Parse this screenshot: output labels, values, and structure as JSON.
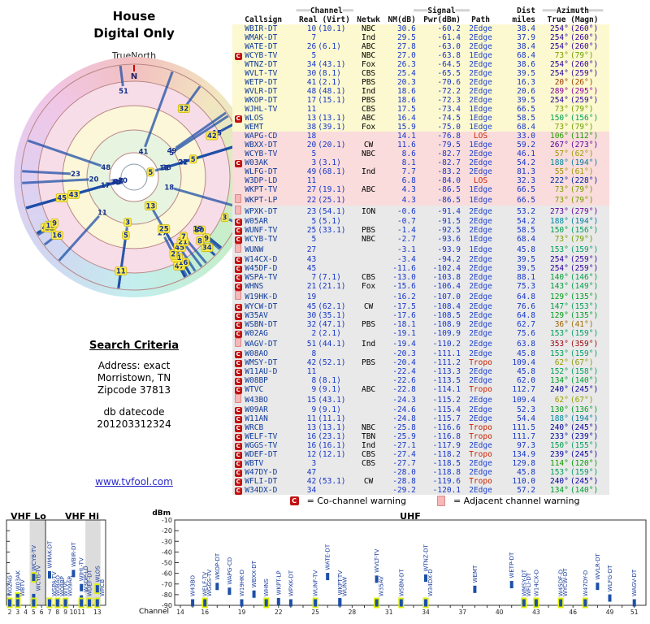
{
  "left_panel": {
    "title1": "House",
    "title2": "Digital Only",
    "truenorth": "TrueNorth",
    "north": "N",
    "search_heading": "Search Criteria",
    "addr1": "Address: exact",
    "addr2": "Morristown, TN",
    "addr3": "Zipcode 37813",
    "datecode_label": "db datecode",
    "datecode_value": "201203312324",
    "link": "www.tvfool.com"
  },
  "table": {
    "h1": {
      "channel": "Channel",
      "signal": "Signal",
      "dist": "Dist",
      "azimuth": "Azimuth"
    },
    "h2": {
      "callsign": "Callsign",
      "real": "Real (Virt)",
      "netwk": "Netwk",
      "nm": "NM(dB)",
      "pwr": "Pwr(dBm)",
      "path": "Path",
      "miles": "miles",
      "true_magn": "True (Magn)"
    }
  },
  "legend": {
    "c_symbol": "C",
    "c_text": "= Co-channel warning",
    "a_text": "= Adjacent channel warning"
  },
  "spectrum": {
    "vhf_lo": "VHF Lo",
    "vhf_hi": "VHF Hi",
    "uhf": "UHF",
    "y_label": "dBm",
    "x_label": "Channel",
    "y_ticks": [
      -10,
      -20,
      -30,
      -40,
      -50,
      -60,
      -70,
      -80,
      -90
    ],
    "vhf_ticks": [
      2,
      3,
      4,
      5,
      6,
      7,
      8,
      9,
      10,
      11,
      13
    ],
    "uhf_ticks": [
      14,
      16,
      19,
      22,
      25,
      28,
      31,
      34,
      37,
      40,
      43,
      46,
      49,
      51
    ]
  },
  "colors": {
    "tier_yellow": "#fcf9d0",
    "tier_pink": "#fadcdc",
    "tier_gray": "#e9e9e9",
    "bar_blue": "#1d4fa8",
    "warn_red": "#c11111",
    "warn_pink": "#f6b8b8",
    "path_warm": "#cc2200",
    "value_blue": "#1536c8",
    "azimuth_color_rule": "hsl(azimuth_degrees,100%,31%)"
  },
  "chart_data": {
    "type": "radar+spectrum+table",
    "radar_rule": "line drawn from outer rim inward; stronger NM(dB) reaches closer to center; label = real channel; yellow label = co-channel warning",
    "spectrum_rule": "bar x = real channel, y = Pwr(dBm) on -10..-90 dBm scale, clamped at bottom",
    "stations": [
      {
        "callsign": "WBIR-DT",
        "real": 10,
        "virt": 10.1,
        "netwk": "NBC",
        "nm_db": 30.6,
        "pwr_dbm": -60.2,
        "path": "2Edge",
        "miles": 38.4,
        "az_true": 254,
        "az_magn": 260,
        "tier": "yellow",
        "warn": ""
      },
      {
        "callsign": "WMAK-DT",
        "real": 7,
        "virt": null,
        "netwk": "Ind",
        "nm_db": 29.5,
        "pwr_dbm": -61.4,
        "path": "2Edge",
        "miles": 37.9,
        "az_true": 254,
        "az_magn": 260,
        "tier": "yellow",
        "warn": ""
      },
      {
        "callsign": "WATE-DT",
        "real": 26,
        "virt": 6.1,
        "netwk": "ABC",
        "nm_db": 27.8,
        "pwr_dbm": -63.0,
        "path": "2Edge",
        "miles": 38.4,
        "az_true": 254,
        "az_magn": 260,
        "tier": "yellow",
        "warn": ""
      },
      {
        "callsign": "WCYB-TV",
        "real": 5,
        "virt": null,
        "netwk": "NBC",
        "nm_db": 27.0,
        "pwr_dbm": -63.8,
        "path": "1Edge",
        "miles": 68.4,
        "az_true": 73,
        "az_magn": 79,
        "tier": "yellow",
        "warn": "C"
      },
      {
        "callsign": "WTNZ-DT",
        "real": 34,
        "virt": 43.1,
        "netwk": "Fox",
        "nm_db": 26.3,
        "pwr_dbm": -64.5,
        "path": "2Edge",
        "miles": 38.6,
        "az_true": 254,
        "az_magn": 260,
        "tier": "yellow",
        "warn": ""
      },
      {
        "callsign": "WVLT-TV",
        "real": 30,
        "virt": 8.1,
        "netwk": "CBS",
        "nm_db": 25.4,
        "pwr_dbm": -65.5,
        "path": "2Edge",
        "miles": 39.5,
        "az_true": 254,
        "az_magn": 259,
        "tier": "yellow",
        "warn": ""
      },
      {
        "callsign": "WETP-DT",
        "real": 41,
        "virt": 2.1,
        "netwk": "PBS",
        "nm_db": 20.3,
        "pwr_dbm": -70.6,
        "path": "2Edge",
        "miles": 16.3,
        "az_true": 20,
        "az_magn": 26,
        "tier": "yellow",
        "warn": ""
      },
      {
        "callsign": "WVLR-DT",
        "real": 48,
        "virt": 48.1,
        "netwk": "Ind",
        "nm_db": 18.6,
        "pwr_dbm": -72.2,
        "path": "2Edge",
        "miles": 20.6,
        "az_true": 289,
        "az_magn": 295,
        "tier": "yellow",
        "warn": ""
      },
      {
        "callsign": "WKOP-DT",
        "real": 17,
        "virt": 15.1,
        "netwk": "PBS",
        "nm_db": 18.6,
        "pwr_dbm": -72.3,
        "path": "2Edge",
        "miles": 39.5,
        "az_true": 254,
        "az_magn": 259,
        "tier": "yellow",
        "warn": ""
      },
      {
        "callsign": "WJHL-TV",
        "real": 11,
        "virt": null,
        "netwk": "CBS",
        "nm_db": 17.5,
        "pwr_dbm": -73.4,
        "path": "1Edge",
        "miles": 66.5,
        "az_true": 73,
        "az_magn": 79,
        "tier": "yellow",
        "warn": ""
      },
      {
        "callsign": "WLOS",
        "real": 13,
        "virt": 13.1,
        "netwk": "ABC",
        "nm_db": 16.4,
        "pwr_dbm": -74.5,
        "path": "1Edge",
        "miles": 58.5,
        "az_true": 150,
        "az_magn": 156,
        "tier": "yellow",
        "warn": "C"
      },
      {
        "callsign": "WEMT",
        "real": 38,
        "virt": 39.1,
        "netwk": "Fox",
        "nm_db": 15.9,
        "pwr_dbm": -75.0,
        "path": "1Edge",
        "miles": 68.4,
        "az_true": 73,
        "az_magn": 79,
        "tier": "yellow",
        "warn": ""
      },
      {
        "callsign": "WAPG-CD",
        "real": 18,
        "virt": null,
        "netwk": "",
        "nm_db": 14.1,
        "pwr_dbm": -76.8,
        "path": "LOS",
        "miles": 33.0,
        "az_true": 106,
        "az_magn": 112,
        "tier": "pink",
        "warn": ""
      },
      {
        "callsign": "WBXX-DT",
        "real": 20,
        "virt": 20.1,
        "netwk": "CW",
        "nm_db": 11.6,
        "pwr_dbm": -79.5,
        "path": "1Edge",
        "miles": 59.2,
        "az_true": 267,
        "az_magn": 273,
        "tier": "pink",
        "warn": ""
      },
      {
        "callsign": "WCYB-TV",
        "real": 5,
        "virt": null,
        "netwk": "NBC",
        "nm_db": 8.6,
        "pwr_dbm": -82.7,
        "path": "2Edge",
        "miles": 46.1,
        "az_true": 57,
        "az_magn": 62,
        "tier": "pink",
        "warn": ""
      },
      {
        "callsign": "W03AK",
        "real": 3,
        "virt": 3.1,
        "netwk": "",
        "nm_db": 8.1,
        "pwr_dbm": -82.7,
        "path": "2Edge",
        "miles": 54.2,
        "az_true": 188,
        "az_magn": 194,
        "tier": "pink",
        "warn": "C"
      },
      {
        "callsign": "WLFG-DT",
        "real": 49,
        "virt": 68.1,
        "netwk": "Ind",
        "nm_db": 7.7,
        "pwr_dbm": -83.2,
        "path": "2Edge",
        "miles": 81.3,
        "az_true": 55,
        "az_magn": 61,
        "tier": "pink",
        "warn": ""
      },
      {
        "callsign": "W3DP-LD",
        "real": 11,
        "virt": null,
        "netwk": "",
        "nm_db": 6.8,
        "pwr_dbm": -84.0,
        "path": "LOS",
        "miles": 32.3,
        "az_true": 222,
        "az_magn": 228,
        "tier": "pink",
        "warn": ""
      },
      {
        "callsign": "WKPT-TV",
        "real": 27,
        "virt": 19.1,
        "netwk": "ABC",
        "nm_db": 4.3,
        "pwr_dbm": -86.5,
        "path": "1Edge",
        "miles": 66.5,
        "az_true": 73,
        "az_magn": 79,
        "tier": "pink",
        "warn": ""
      },
      {
        "callsign": "WKPT-LP",
        "real": 22,
        "virt": 25.1,
        "netwk": "",
        "nm_db": 4.3,
        "pwr_dbm": -86.5,
        "path": "1Edge",
        "miles": 66.5,
        "az_true": 73,
        "az_magn": 79,
        "tier": "pink",
        "warn": "A"
      },
      {
        "callsign": "WPXK-DT",
        "real": 23,
        "virt": 54.1,
        "netwk": "ION",
        "nm_db": -0.6,
        "pwr_dbm": -91.4,
        "path": "2Edge",
        "miles": 53.2,
        "az_true": 273,
        "az_magn": 279,
        "tier": "gray",
        "warn": "A"
      },
      {
        "callsign": "W05AR",
        "real": 5,
        "virt": 5.1,
        "netwk": "",
        "nm_db": -0.7,
        "pwr_dbm": -91.5,
        "path": "2Edge",
        "miles": 54.2,
        "az_true": 188,
        "az_magn": 194,
        "tier": "gray",
        "warn": "C"
      },
      {
        "callsign": "WUNF-TV",
        "real": 25,
        "virt": 33.1,
        "netwk": "PBS",
        "nm_db": -1.4,
        "pwr_dbm": -92.5,
        "path": "2Edge",
        "miles": 58.5,
        "az_true": 150,
        "az_magn": 156,
        "tier": "gray",
        "warn": "C"
      },
      {
        "callsign": "WCYB-TV",
        "real": 5,
        "virt": null,
        "netwk": "NBC",
        "nm_db": -2.7,
        "pwr_dbm": -93.6,
        "path": "1Edge",
        "miles": 68.4,
        "az_true": 73,
        "az_magn": 79,
        "tier": "gray",
        "warn": "C"
      },
      {
        "callsign": "WUNW",
        "real": 27,
        "virt": null,
        "netwk": "",
        "nm_db": -3.1,
        "pwr_dbm": -93.9,
        "path": "1Edge",
        "miles": 45.8,
        "az_true": 153,
        "az_magn": 159,
        "tier": "gray",
        "warn": "A"
      },
      {
        "callsign": "W14CX-D",
        "real": 43,
        "virt": null,
        "netwk": "",
        "nm_db": -3.4,
        "pwr_dbm": -94.2,
        "path": "2Edge",
        "miles": 39.5,
        "az_true": 254,
        "az_magn": 259,
        "tier": "gray",
        "warn": "C"
      },
      {
        "callsign": "W45DF-D",
        "real": 45,
        "virt": null,
        "netwk": "",
        "nm_db": -11.6,
        "pwr_dbm": -102.4,
        "path": "2Edge",
        "miles": 39.5,
        "az_true": 254,
        "az_magn": 259,
        "tier": "gray",
        "warn": "C"
      },
      {
        "callsign": "WSPA-TV",
        "real": 7,
        "virt": 7.1,
        "netwk": "CBS",
        "nm_db": -13.0,
        "pwr_dbm": -103.8,
        "path": "2Edge",
        "miles": 88.1,
        "az_true": 140,
        "az_magn": 146,
        "tier": "gray",
        "warn": "C"
      },
      {
        "callsign": "WHNS",
        "real": 21,
        "virt": 21.1,
        "netwk": "Fox",
        "nm_db": -15.6,
        "pwr_dbm": -106.4,
        "path": "2Edge",
        "miles": 75.3,
        "az_true": 143,
        "az_magn": 149,
        "tier": "gray",
        "warn": "C"
      },
      {
        "callsign": "W19HK-D",
        "real": 19,
        "virt": null,
        "netwk": "",
        "nm_db": -16.2,
        "pwr_dbm": -107.0,
        "path": "2Edge",
        "miles": 64.8,
        "az_true": 129,
        "az_magn": 135,
        "tier": "gray",
        "warn": "A"
      },
      {
        "callsign": "WYCW-DT",
        "real": 45,
        "virt": 62.1,
        "netwk": "CW",
        "nm_db": -17.5,
        "pwr_dbm": -108.4,
        "path": "2Edge",
        "miles": 76.6,
        "az_true": 147,
        "az_magn": 153,
        "tier": "gray",
        "warn": "C"
      },
      {
        "callsign": "W35AV",
        "real": 30,
        "virt": 35.1,
        "netwk": "",
        "nm_db": -17.6,
        "pwr_dbm": -108.5,
        "path": "2Edge",
        "miles": 64.8,
        "az_true": 129,
        "az_magn": 135,
        "tier": "gray",
        "warn": "C"
      },
      {
        "callsign": "WSBN-DT",
        "real": 32,
        "virt": 47.1,
        "netwk": "PBS",
        "nm_db": -18.1,
        "pwr_dbm": -108.9,
        "path": "2Edge",
        "miles": 62.7,
        "az_true": 36,
        "az_magn": 41,
        "tier": "gray",
        "warn": "C"
      },
      {
        "callsign": "W02AG",
        "real": 2,
        "virt": 2.1,
        "netwk": "",
        "nm_db": -19.1,
        "pwr_dbm": -109.9,
        "path": "2Edge",
        "miles": 75.6,
        "az_true": 153,
        "az_magn": 159,
        "tier": "gray",
        "warn": "C"
      },
      {
        "callsign": "WAGV-DT",
        "real": 51,
        "virt": 44.1,
        "netwk": "Ind",
        "nm_db": -19.4,
        "pwr_dbm": -110.2,
        "path": "2Edge",
        "miles": 63.8,
        "az_true": 353,
        "az_magn": 359,
        "tier": "gray",
        "warn": "A"
      },
      {
        "callsign": "W08AO",
        "real": 8,
        "virt": null,
        "netwk": "",
        "nm_db": -20.3,
        "pwr_dbm": -111.1,
        "path": "2Edge",
        "miles": 45.8,
        "az_true": 153,
        "az_magn": 159,
        "tier": "gray",
        "warn": "C"
      },
      {
        "callsign": "WMSY-DT",
        "real": 42,
        "virt": 52.1,
        "netwk": "PBS",
        "nm_db": -20.4,
        "pwr_dbm": -111.2,
        "path": "Tropo",
        "miles": 109.4,
        "az_true": 62,
        "az_magn": 67,
        "tier": "gray",
        "warn": "C"
      },
      {
        "callsign": "W11AU-D",
        "real": 11,
        "virt": null,
        "netwk": "",
        "nm_db": -22.4,
        "pwr_dbm": -113.3,
        "path": "2Edge",
        "miles": 45.8,
        "az_true": 152,
        "az_magn": 158,
        "tier": "gray",
        "warn": "C"
      },
      {
        "callsign": "W08BP",
        "real": 8,
        "virt": 8.1,
        "netwk": "",
        "nm_db": -22.6,
        "pwr_dbm": -113.5,
        "path": "2Edge",
        "miles": 62.0,
        "az_true": 134,
        "az_magn": 140,
        "tier": "gray",
        "warn": "C"
      },
      {
        "callsign": "WTVC",
        "real": 9,
        "virt": 9.1,
        "netwk": "ABC",
        "nm_db": -22.8,
        "pwr_dbm": -114.1,
        "path": "Tropo",
        "miles": 112.7,
        "az_true": 240,
        "az_magn": 245,
        "tier": "gray",
        "warn": "C"
      },
      {
        "callsign": "W43BO",
        "real": 15,
        "virt": 43.1,
        "netwk": "",
        "nm_db": -24.3,
        "pwr_dbm": -115.2,
        "path": "2Edge",
        "miles": 109.4,
        "az_true": 62,
        "az_magn": 67,
        "tier": "gray",
        "warn": "A"
      },
      {
        "callsign": "W09AR",
        "real": 9,
        "virt": 9.1,
        "netwk": "",
        "nm_db": -24.6,
        "pwr_dbm": -115.4,
        "path": "2Edge",
        "miles": 52.3,
        "az_true": 130,
        "az_magn": 136,
        "tier": "gray",
        "warn": "C"
      },
      {
        "callsign": "W11AN",
        "real": 11,
        "virt": 11.1,
        "netwk": "",
        "nm_db": -24.8,
        "pwr_dbm": -115.7,
        "path": "2Edge",
        "miles": 54.4,
        "az_true": 188,
        "az_magn": 194,
        "tier": "gray",
        "warn": "C"
      },
      {
        "callsign": "WRCB",
        "real": 13,
        "virt": 13.1,
        "netwk": "NBC",
        "nm_db": -25.8,
        "pwr_dbm": -116.6,
        "path": "Tropo",
        "miles": 111.5,
        "az_true": 240,
        "az_magn": 245,
        "tier": "gray",
        "warn": "C"
      },
      {
        "callsign": "WELF-TV",
        "real": 16,
        "virt": 23.1,
        "netwk": "TBN",
        "nm_db": -25.9,
        "pwr_dbm": -116.8,
        "path": "Tropo",
        "miles": 111.7,
        "az_true": 233,
        "az_magn": 239,
        "tier": "gray",
        "warn": "C"
      },
      {
        "callsign": "WGGS-TV",
        "real": 16,
        "virt": 16.1,
        "netwk": "Ind",
        "nm_db": -27.1,
        "pwr_dbm": -117.9,
        "path": "2Edge",
        "miles": 97.3,
        "az_true": 150,
        "az_magn": 155,
        "tier": "gray",
        "warn": "C"
      },
      {
        "callsign": "WDEF-DT",
        "real": 12,
        "virt": 12.1,
        "netwk": "CBS",
        "nm_db": -27.4,
        "pwr_dbm": -118.2,
        "path": "Tropo",
        "miles": 134.9,
        "az_true": 239,
        "az_magn": 245,
        "tier": "gray",
        "warn": "C"
      },
      {
        "callsign": "WBTV",
        "real": 3,
        "virt": null,
        "netwk": "CBS",
        "nm_db": -27.7,
        "pwr_dbm": -118.5,
        "path": "2Edge",
        "miles": 129.8,
        "az_true": 114,
        "az_magn": 120,
        "tier": "gray",
        "warn": "C"
      },
      {
        "callsign": "W47DY-D",
        "real": 47,
        "virt": null,
        "netwk": "",
        "nm_db": -28.0,
        "pwr_dbm": -118.8,
        "path": "2Edge",
        "miles": 45.8,
        "az_true": 153,
        "az_magn": 159,
        "tier": "gray",
        "warn": "C"
      },
      {
        "callsign": "WFLI-DT",
        "real": 42,
        "virt": 53.1,
        "netwk": "CW",
        "nm_db": -28.8,
        "pwr_dbm": -119.6,
        "path": "Tropo",
        "miles": 110.0,
        "az_true": 240,
        "az_magn": 245,
        "tier": "gray",
        "warn": "C"
      },
      {
        "callsign": "W34DX-D",
        "real": 34,
        "virt": null,
        "netwk": "",
        "nm_db": -29.2,
        "pwr_dbm": -120.1,
        "path": "2Edge",
        "miles": 57.2,
        "az_true": 134,
        "az_magn": 140,
        "tier": "gray",
        "warn": "C"
      }
    ]
  }
}
